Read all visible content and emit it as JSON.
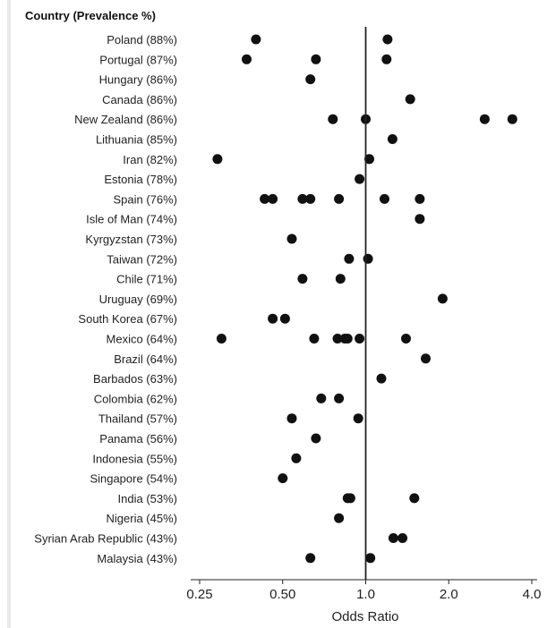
{
  "chart_data": {
    "type": "scatter",
    "title": "Country (Prevalence %)",
    "xlabel": "Odds Ratio",
    "ylabel": "",
    "x_scale": "log2",
    "xlim": [
      0.25,
      4.0
    ],
    "x_ticks": [
      0.25,
      0.5,
      1.0,
      2.0,
      4.0
    ],
    "x_tick_labels": [
      "0.25",
      "0.50",
      "1.0",
      "2.0",
      "4.0"
    ],
    "reference_line": 1.0,
    "grid": false,
    "point_color": "#111111",
    "categories": [
      "Poland (88%)",
      "Portugal (87%)",
      "Hungary (86%)",
      "Canada (86%)",
      "New Zealand (86%)",
      "Lithuania (85%)",
      "Iran (82%)",
      "Estonia (78%)",
      "Spain (76%)",
      "Isle of Man (74%)",
      "Kyrgyzstan (73%)",
      "Taiwan (72%)",
      "Chile (71%)",
      "Uruguay (69%)",
      "South Korea (67%)",
      "Mexico (64%)",
      "Brazil (64%)",
      "Barbados (63%)",
      "Colombia (62%)",
      "Thailand (57%)",
      "Panama (56%)",
      "Indonesia (55%)",
      "Singapore (54%)",
      "India (53%)",
      "Nigeria (45%)",
      "Syrian Arab Republic (43%)",
      "Malaysia (43%)"
    ],
    "points": [
      [
        0.4,
        1.2
      ],
      [
        0.37,
        0.66,
        1.19
      ],
      [
        0.63
      ],
      [
        1.45
      ],
      [
        0.76,
        1.0,
        2.7,
        3.4
      ],
      [
        1.25
      ],
      [
        0.29,
        1.03
      ],
      [
        0.95
      ],
      [
        0.43,
        0.46,
        0.59,
        0.63,
        0.8,
        1.17,
        1.57
      ],
      [
        1.57
      ],
      [
        0.54
      ],
      [
        0.87,
        1.02
      ],
      [
        0.59,
        0.81
      ],
      [
        1.9
      ],
      [
        0.46,
        0.51
      ],
      [
        0.3,
        0.65,
        0.79,
        0.84,
        0.86,
        0.95,
        1.4
      ],
      [
        1.65
      ],
      [
        1.14
      ],
      [
        0.69,
        0.8
      ],
      [
        0.54,
        0.94
      ],
      [
        0.66
      ],
      [
        0.56
      ],
      [
        0.5
      ],
      [
        0.86,
        0.88,
        1.5
      ],
      [
        0.8
      ],
      [
        1.26,
        1.36
      ],
      [
        0.63,
        1.04
      ]
    ]
  }
}
